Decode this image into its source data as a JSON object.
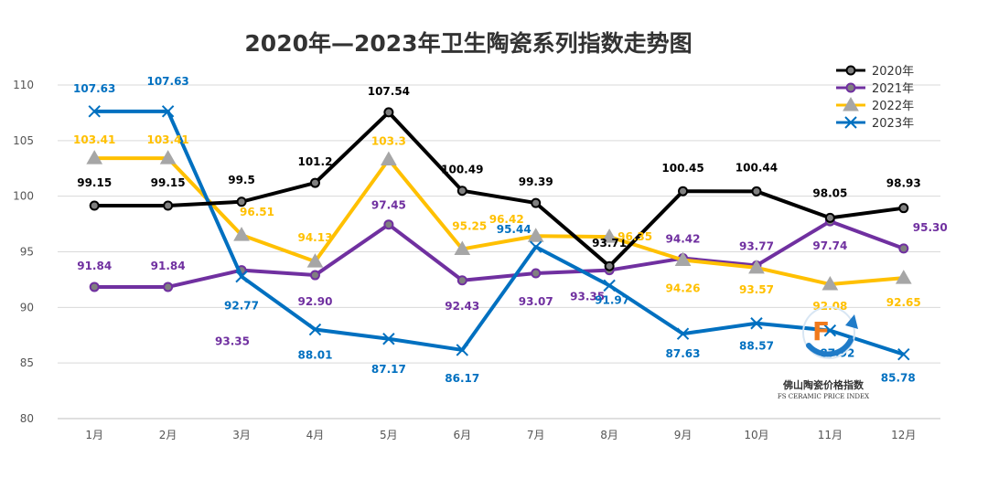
{
  "chart_data": {
    "type": "line",
    "title": "2020年—2023年卫生陶瓷系列指数走势图",
    "categories": [
      "1月",
      "2月",
      "3月",
      "4月",
      "5月",
      "6月",
      "7月",
      "8月",
      "9月",
      "10月",
      "11月",
      "12月"
    ],
    "ylim": [
      80,
      110
    ],
    "yticks": [
      80,
      85,
      90,
      95,
      100,
      105,
      110
    ],
    "grid": true,
    "legend_position": "top-right",
    "series": [
      {
        "name": "2020年",
        "color": "#000000",
        "marker": "circle",
        "values": [
          99.15,
          99.15,
          99.5,
          101.2,
          107.54,
          100.49,
          99.39,
          93.71,
          100.45,
          100.44,
          98.05,
          98.93
        ],
        "labels": [
          "99.15",
          "99.15",
          "99.5",
          "101.2",
          "107.54",
          "100.49",
          "99.39",
          "93.71",
          "100.45",
          "100.44",
          "98.05",
          "98.93"
        ]
      },
      {
        "name": "2021年",
        "color": "#7030a0",
        "marker": "circle",
        "values": [
          91.84,
          91.84,
          93.35,
          92.9,
          97.45,
          92.43,
          93.07,
          93.35,
          94.42,
          93.77,
          97.74,
          95.3
        ],
        "labels": [
          "91.84",
          "91.84",
          "93.35",
          "92.90",
          "97.45",
          "92.43",
          "93.07",
          "93.35",
          "94.42",
          "93.77",
          "97.74",
          "95.30"
        ]
      },
      {
        "name": "2022年",
        "color": "#ffc000",
        "marker": "triangle",
        "values": [
          103.41,
          103.41,
          96.51,
          94.13,
          103.3,
          95.25,
          96.42,
          96.35,
          94.26,
          93.57,
          92.08,
          92.65
        ],
        "labels": [
          "103.41",
          "103.41",
          "96.51",
          "94.13",
          "103.3",
          "95.25",
          "96.42",
          "96.35",
          "94.26",
          "93.57",
          "92.08",
          "92.65"
        ]
      },
      {
        "name": "2023年",
        "color": "#0070c0",
        "marker": "x",
        "values": [
          107.63,
          107.63,
          92.77,
          88.01,
          87.17,
          86.17,
          95.44,
          91.97,
          87.63,
          88.57,
          87.92,
          85.78
        ],
        "labels": [
          "107.63",
          "107.63",
          "92.77",
          "88.01",
          "87.17",
          "86.17",
          "95.44",
          "91.97",
          "87.63",
          "88.57",
          "87.92",
          "85.78"
        ]
      }
    ]
  },
  "logo": {
    "name": "佛山陶瓷价格指数",
    "subtitle": "FS CERAMIC PRICE INDEX",
    "letter": "F"
  }
}
